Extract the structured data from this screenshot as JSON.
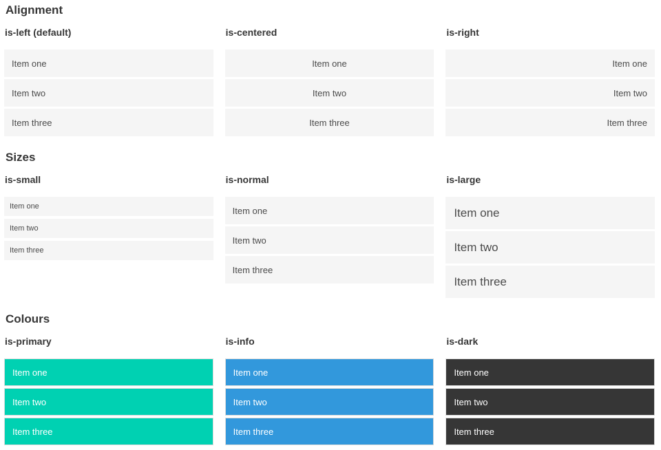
{
  "colors": {
    "primary": "#00d1b2",
    "info": "#3298dc",
    "dark": "#363636",
    "item_bg": "#f5f5f5",
    "item_text": "#4a4a4a",
    "heading_text": "#363636",
    "colored_item_text": "#ffffff",
    "item_border": "#dbdbdb",
    "page_bg": "#ffffff"
  },
  "sections": [
    {
      "title": "Alignment",
      "columns": [
        {
          "heading": "is-left (default)",
          "modifier": "is-left",
          "items": [
            "Item one",
            "Item two",
            "Item three"
          ]
        },
        {
          "heading": "is-centered",
          "modifier": "is-centered",
          "items": [
            "Item one",
            "Item two",
            "Item three"
          ]
        },
        {
          "heading": "is-right",
          "modifier": "is-right",
          "items": [
            "Item one",
            "Item two",
            "Item three"
          ]
        }
      ]
    },
    {
      "title": "Sizes",
      "columns": [
        {
          "heading": "is-small",
          "modifier": "is-small",
          "items": [
            "Item one",
            "Item two",
            "Item three"
          ]
        },
        {
          "heading": "is-normal",
          "modifier": "is-normal",
          "items": [
            "Item one",
            "Item two",
            "Item three"
          ]
        },
        {
          "heading": "is-large",
          "modifier": "is-large",
          "items": [
            "Item one",
            "Item two",
            "Item three"
          ]
        }
      ]
    },
    {
      "title": "Colours",
      "columns": [
        {
          "heading": "is-primary",
          "modifier": "is-primary",
          "items": [
            "Item one",
            "Item two",
            "Item three"
          ]
        },
        {
          "heading": "is-info",
          "modifier": "is-info",
          "items": [
            "Item one",
            "Item two",
            "Item three"
          ]
        },
        {
          "heading": "is-dark",
          "modifier": "is-dark",
          "items": [
            "Item one",
            "Item two",
            "Item three"
          ]
        }
      ]
    }
  ]
}
